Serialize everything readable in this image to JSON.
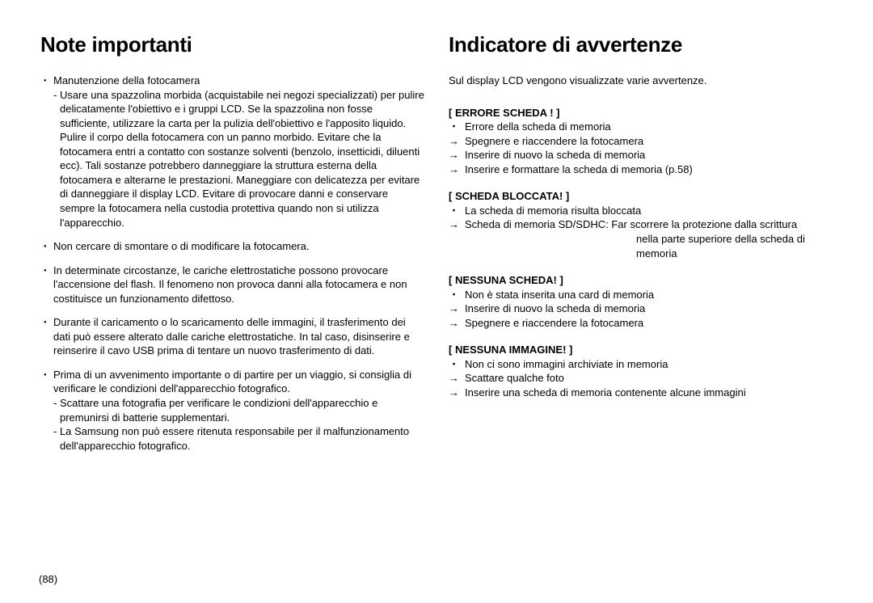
{
  "pageNumber": "(88)",
  "left": {
    "heading": "Note importanti",
    "items": [
      {
        "lead": "Manutenzione della fotocamera",
        "subs": [
          "- Usare una spazzolina morbida (acquistabile nei negozi specializzati) per pulire delicatamente l'obiettivo e i gruppi LCD. Se la spazzolina non fosse sufficiente, utilizzare la carta per la pulizia dell'obiettivo e l'apposito liquido. Pulire il corpo della fotocamera con un panno morbido. Evitare che la fotocamera entri a contatto con sostanze solventi (benzolo, insetticidi, diluenti ecc). Tali sostanze potrebbero danneggiare la struttura esterna della fotocamera e alterarne le prestazioni. Maneggiare con delicatezza per evitare di danneggiare il display LCD. Evitare di provocare danni e conservare sempre la fotocamera nella custodia protettiva quando non si utilizza l'apparecchio."
        ]
      },
      {
        "lead": "Non cercare di smontare o di modificare la fotocamera."
      },
      {
        "lead": "In determinate circostanze, le cariche elettrostatiche possono provocare l'accensione del flash. Il fenomeno non provoca danni alla fotocamera e non costituisce un funzionamento difettoso."
      },
      {
        "lead": "Durante il caricamento o lo scaricamento delle immagini, il trasferimento dei dati può essere alterato dalle cariche elettrostatiche. In tal caso, disinserire e reinserire il cavo USB prima di tentare un nuovo trasferimento di dati."
      },
      {
        "lead": "Prima di un avvenimento importante o di partire per un viaggio, si consiglia di verificare le condizioni dell'apparecchio fotografico.",
        "subs": [
          "- Scattare una fotografia per verificare le condizioni dell'apparecchio e premunirsi di batterie supplementari.",
          "- La Samsung non può essere ritenuta responsabile per il malfunzionamento dell'apparecchio fotografico."
        ]
      }
    ]
  },
  "right": {
    "heading": "Indicatore di avvertenze",
    "intro": "Sul display LCD vengono visualizzate varie avvertenze.",
    "blocks": [
      {
        "title": "[ ERRORE SCHEDA ! ]",
        "lines": [
          {
            "mark": "・",
            "text": "Errore della scheda di memoria"
          },
          {
            "mark": "→",
            "text": "Spegnere e riaccendere la fotocamera"
          },
          {
            "mark": "→",
            "text": "Inserire di nuovo la scheda di memoria"
          },
          {
            "mark": "→",
            "text": "Inserire e formattare la scheda di memoria (p.58)"
          }
        ]
      },
      {
        "title": "[ SCHEDA BLOCCATA! ]",
        "lines": [
          {
            "mark": "・",
            "text": "La scheda di memoria risulta bloccata"
          },
          {
            "mark": "→",
            "text": "Scheda di memoria SD/SDHC: Far scorrere la protezione dalla scrittura",
            "extra": [
              "nella parte superiore della scheda di",
              "memoria"
            ]
          }
        ]
      },
      {
        "title": "[ NESSUNA SCHEDA! ]",
        "lines": [
          {
            "mark": "・",
            "text": "Non è stata inserita una card di memoria"
          },
          {
            "mark": "→",
            "text": "Inserire di nuovo la scheda di memoria"
          },
          {
            "mark": "→",
            "text": "Spegnere e riaccendere la fotocamera"
          }
        ]
      },
      {
        "title": "[ NESSUNA IMMAGINE! ]",
        "lines": [
          {
            "mark": "・",
            "text": "Non ci sono immagini archiviate in memoria"
          },
          {
            "mark": "→",
            "text": "Scattare qualche foto"
          },
          {
            "mark": "→",
            "text": "Inserire una scheda di memoria contenente alcune immagini"
          }
        ]
      }
    ]
  }
}
